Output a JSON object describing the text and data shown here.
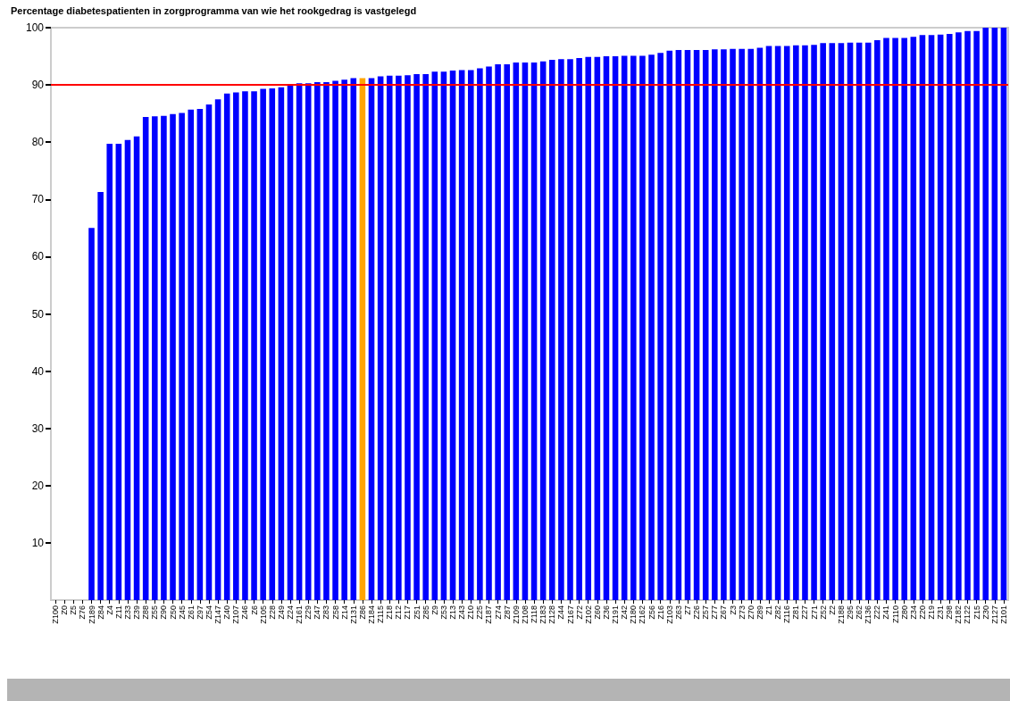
{
  "chart_data": {
    "type": "bar",
    "title": "Percentage diabetespatienten in zorgprogramma van wie het rookgedrag is vastgelegd",
    "categories": [
      "Z100",
      "Z0",
      "Z5",
      "Z76",
      "Z189",
      "Z84",
      "Z4",
      "Z11",
      "Z33",
      "Z39",
      "Z88",
      "Z55",
      "Z90",
      "Z50",
      "Z45",
      "Z61",
      "Z97",
      "Z54",
      "Z147",
      "Z40",
      "Z107",
      "Z46",
      "Z6",
      "Z105",
      "Z28",
      "Z49",
      "Z24",
      "Z161",
      "Z29",
      "Z47",
      "Z83",
      "Z58",
      "Z14",
      "Z131",
      "Z86",
      "Z184",
      "Z115",
      "Z18",
      "Z12",
      "Z17",
      "Z51",
      "Z85",
      "Z9",
      "Z53",
      "Z13",
      "Z43",
      "Z10",
      "Z25",
      "Z187",
      "Z74",
      "Z87",
      "Z109",
      "Z108",
      "Z118",
      "Z183",
      "Z128",
      "Z44",
      "Z167",
      "Z72",
      "Z102",
      "Z60",
      "Z36",
      "Z191",
      "Z42",
      "Z180",
      "Z162",
      "Z56",
      "Z16",
      "Z103",
      "Z63",
      "Z7",
      "Z26",
      "Z57",
      "Z77",
      "Z67",
      "Z3",
      "Z73",
      "Z70",
      "Z89",
      "Z1",
      "Z82",
      "Z116",
      "Z81",
      "Z27",
      "Z71",
      "Z52",
      "Z2",
      "Z188",
      "Z95",
      "Z62",
      "Z136",
      "Z22",
      "Z41",
      "Z110",
      "Z80",
      "Z34",
      "Z20",
      "Z19",
      "Z31",
      "Z98",
      "Z182",
      "Z122",
      "Z15",
      "Z30",
      "Z127",
      "Z101"
    ],
    "values": [
      0,
      0,
      0,
      0,
      65.0,
      71.3,
      79.7,
      79.7,
      80.4,
      81.0,
      84.4,
      84.5,
      84.6,
      84.9,
      85.1,
      85.7,
      85.8,
      86.6,
      87.5,
      88.5,
      88.7,
      88.9,
      88.9,
      89.3,
      89.4,
      89.6,
      89.9,
      90.3,
      90.3,
      90.5,
      90.5,
      90.7,
      90.9,
      91.2,
      91.2,
      91.2,
      91.5,
      91.6,
      91.6,
      91.7,
      91.9,
      91.9,
      92.3,
      92.3,
      92.5,
      92.6,
      92.6,
      92.9,
      93.2,
      93.6,
      93.6,
      93.9,
      93.9,
      93.9,
      94.1,
      94.4,
      94.5,
      94.5,
      94.7,
      94.9,
      94.9,
      95.0,
      95.0,
      95.1,
      95.1,
      95.1,
      95.3,
      95.6,
      96.0,
      96.1,
      96.1,
      96.1,
      96.1,
      96.2,
      96.2,
      96.3,
      96.3,
      96.3,
      96.5,
      96.8,
      96.8,
      96.8,
      96.9,
      96.9,
      97.0,
      97.3,
      97.3,
      97.3,
      97.4,
      97.4,
      97.4,
      97.8,
      98.2,
      98.2,
      98.2,
      98.4,
      98.7,
      98.7,
      98.8,
      98.9,
      99.2,
      99.4,
      99.4,
      100,
      100,
      100
    ],
    "colors": [
      "#0000ff",
      "#0000ff",
      "#0000ff",
      "#0000ff",
      "#0000ff",
      "#0000ff",
      "#0000ff",
      "#0000ff",
      "#0000ff",
      "#0000ff",
      "#0000ff",
      "#0000ff",
      "#0000ff",
      "#0000ff",
      "#0000ff",
      "#0000ff",
      "#0000ff",
      "#0000ff",
      "#0000ff",
      "#0000ff",
      "#0000ff",
      "#0000ff",
      "#0000ff",
      "#0000ff",
      "#0000ff",
      "#0000ff",
      "#0000ff",
      "#0000ff",
      "#0000ff",
      "#0000ff",
      "#0000ff",
      "#0000ff",
      "#0000ff",
      "#0000ff",
      "#ffa500",
      "#0000ff",
      "#0000ff",
      "#0000ff",
      "#0000ff",
      "#0000ff",
      "#0000ff",
      "#0000ff",
      "#0000ff",
      "#0000ff",
      "#0000ff",
      "#0000ff",
      "#0000ff",
      "#0000ff",
      "#0000ff",
      "#0000ff",
      "#0000ff",
      "#0000ff",
      "#0000ff",
      "#0000ff",
      "#0000ff",
      "#0000ff",
      "#0000ff",
      "#0000ff",
      "#0000ff",
      "#0000ff",
      "#0000ff",
      "#0000ff",
      "#0000ff",
      "#0000ff",
      "#0000ff",
      "#0000ff",
      "#0000ff",
      "#0000ff",
      "#0000ff",
      "#0000ff",
      "#0000ff",
      "#0000ff",
      "#0000ff",
      "#0000ff",
      "#0000ff",
      "#0000ff",
      "#0000ff",
      "#0000ff",
      "#0000ff",
      "#0000ff",
      "#0000ff",
      "#0000ff",
      "#0000ff",
      "#0000ff",
      "#0000ff",
      "#0000ff",
      "#0000ff",
      "#0000ff",
      "#0000ff",
      "#0000ff",
      "#0000ff",
      "#0000ff",
      "#0000ff",
      "#0000ff",
      "#0000ff",
      "#0000ff",
      "#0000ff",
      "#0000ff",
      "#0000ff",
      "#0000ff",
      "#0000ff",
      "#0000ff",
      "#0000ff",
      "#0000ff",
      "#0000ff",
      "#0000ff"
    ],
    "ylim": [
      0,
      100
    ],
    "yticks": [
      10,
      20,
      30,
      40,
      50,
      60,
      70,
      80,
      90,
      100
    ],
    "ref_lines": [
      {
        "axis": "y",
        "value": 90,
        "color": "#ff0000"
      }
    ],
    "grid": false
  }
}
